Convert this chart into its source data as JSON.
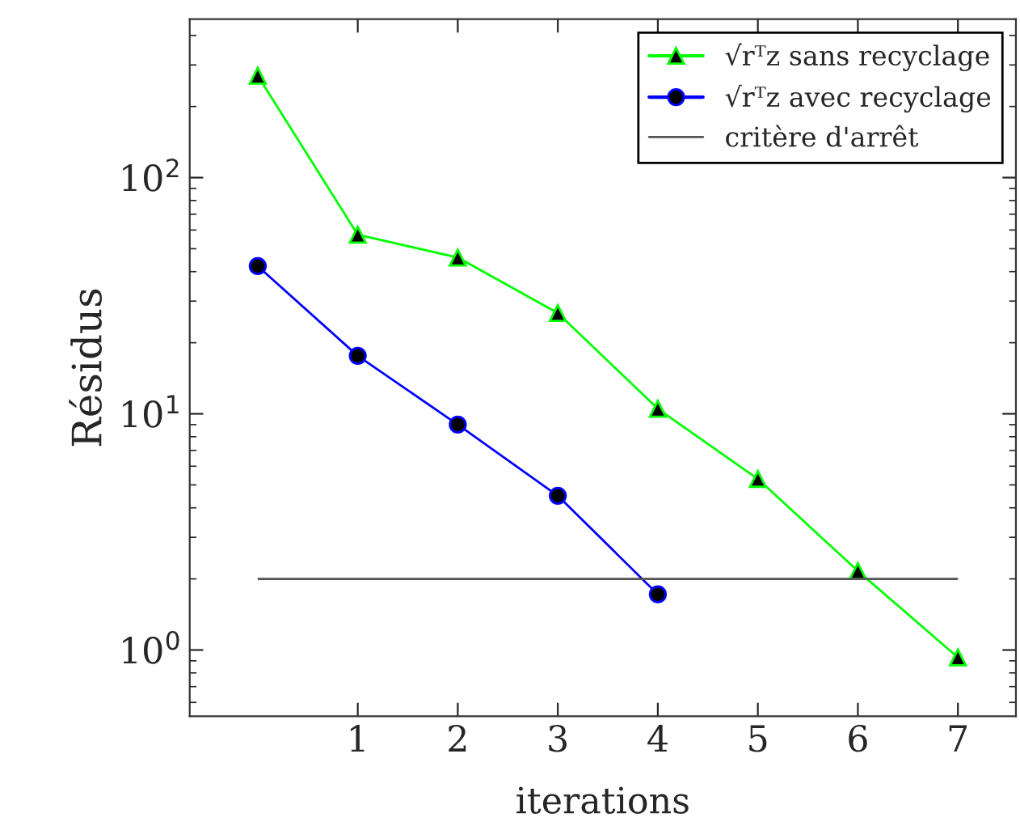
{
  "chart_data": {
    "type": "line",
    "xlabel": "iterations",
    "ylabel": "Résidus",
    "log": "y",
    "xlim": [
      -0.68,
      7.58
    ],
    "xticks": [
      1,
      2,
      3,
      4,
      5,
      6,
      7
    ],
    "ylim": [
      0.524,
      469
    ],
    "yticks": [
      {
        "value": 1,
        "label": "10$^{0}$"
      },
      {
        "value": 10,
        "label": "10$^{1}$"
      },
      {
        "value": 100,
        "label": "10$^{2}$"
      }
    ],
    "grid": false,
    "legend": "top right",
    "series": [
      {
        "name": "√rᵀz sans recyclage",
        "color": "#00ff00",
        "marker": "triangle",
        "x": [
          0,
          1,
          2,
          3,
          4,
          5,
          6,
          7
        ],
        "values": [
          270,
          57.3,
          45.9,
          26.7,
          10.5,
          5.3,
          2.16,
          0.93
        ]
      },
      {
        "name": "√rᵀz avec recyclage",
        "color": "#0000ff",
        "marker": "circle",
        "x": [
          0,
          1,
          2,
          3,
          4
        ],
        "values": [
          42.2,
          17.6,
          9.0,
          4.5,
          1.72
        ]
      }
    ],
    "ref_lines": [
      {
        "axis": "y",
        "value": 2,
        "label": "critère d'arrêt",
        "color": "#555555",
        "line_style": "solid"
      }
    ]
  }
}
